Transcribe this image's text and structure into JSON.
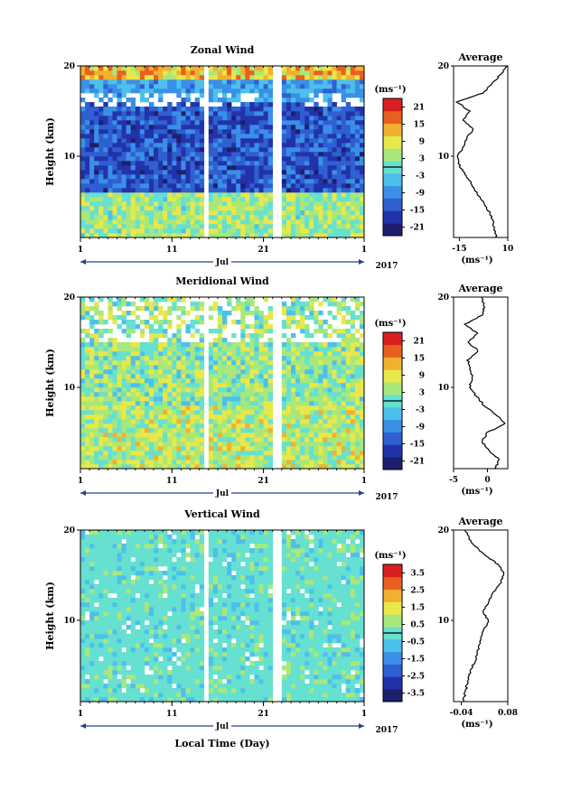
{
  "chart_data": [
    {
      "type": "heatmap",
      "title": "Zonal Wind",
      "ylabel": "Height (km)",
      "xlabel": "",
      "xlim": [
        1,
        32
      ],
      "ylim": [
        1,
        20
      ],
      "x_ticks": [
        "1",
        "11",
        "21",
        "1"
      ],
      "y_ticks": [
        "20",
        "10"
      ],
      "month_label": "Jul",
      "year_label": "2017",
      "colorbar": {
        "unit": "(ms⁻¹)",
        "ticks": [
          "21",
          "15",
          "9",
          "3",
          "-3",
          "-9",
          "-15",
          "-21"
        ],
        "range": [
          -24,
          24
        ]
      },
      "data_gaps_day": [
        [
          14.3,
          15.1
        ],
        [
          22.0,
          22.8
        ]
      ],
      "average_profile": {
        "title": "Average",
        "xlabel": "(ms⁻¹)",
        "x_ticks": [
          "-15",
          "10"
        ],
        "xlim": [
          -18,
          10
        ],
        "heights_km": [
          1,
          2,
          3,
          4,
          5,
          6,
          7,
          8,
          9,
          10,
          11,
          12,
          13,
          14,
          15,
          16,
          17,
          18,
          19,
          20
        ],
        "values": [
          4,
          3,
          2,
          0,
          -3,
          -6,
          -9,
          -12,
          -15,
          -16,
          -13,
          -11,
          -8,
          -13,
          -10,
          -16,
          -3,
          2,
          6,
          10
        ]
      }
    },
    {
      "type": "heatmap",
      "title": "Meridional Wind",
      "ylabel": "Height (km)",
      "xlabel": "",
      "xlim": [
        1,
        32
      ],
      "ylim": [
        1,
        20
      ],
      "x_ticks": [
        "1",
        "11",
        "21",
        "1"
      ],
      "y_ticks": [
        "20",
        "10"
      ],
      "month_label": "Jul",
      "year_label": "2017",
      "colorbar": {
        "unit": "(ms⁻¹)",
        "ticks": [
          "21",
          "15",
          "9",
          "3",
          "-3",
          "-9",
          "-15",
          "-21"
        ],
        "range": [
          -24,
          24
        ]
      },
      "data_gaps_day": [
        [
          14.3,
          15.1
        ],
        [
          22.0,
          22.8
        ]
      ],
      "average_profile": {
        "title": "Average",
        "xlabel": "(ms⁻¹)",
        "x_ticks": [
          "-5",
          "0"
        ],
        "xlim": [
          -5,
          3
        ],
        "heights_km": [
          1,
          2,
          3,
          4,
          5,
          6,
          7,
          8,
          9,
          10,
          11,
          12,
          13,
          14,
          15,
          16,
          17,
          18,
          19,
          20
        ],
        "values": [
          1,
          1.8,
          0.2,
          -0.8,
          0,
          2.6,
          1.2,
          -0.5,
          -1.6,
          -2.7,
          -2.2,
          -2.6,
          -2.9,
          -1.3,
          -2.8,
          -1.5,
          -3.3,
          -0.8,
          -0.4,
          -0.9
        ]
      }
    },
    {
      "type": "heatmap",
      "title": "Vertical Wind",
      "ylabel": "Height (km)",
      "xlabel": "Local Time (Day)",
      "xlim": [
        1,
        32
      ],
      "ylim": [
        1,
        20
      ],
      "x_ticks": [
        "1",
        "11",
        "21",
        "1"
      ],
      "y_ticks": [
        "20",
        "10"
      ],
      "month_label": "Jul",
      "year_label": "2017",
      "colorbar": {
        "unit": "(ms⁻¹)",
        "ticks": [
          "3.5",
          "2.5",
          "1.5",
          "0.5",
          "-0.5",
          "-1.5",
          "-2.5",
          "-3.5"
        ],
        "range": [
          -4,
          4
        ]
      },
      "data_gaps_day": [
        [
          14.3,
          15.1
        ],
        [
          22.0,
          22.8
        ]
      ],
      "average_profile": {
        "title": "Average",
        "xlabel": "(ms⁻¹)",
        "x_ticks": [
          "-0.04",
          "0.08"
        ],
        "xlim": [
          -0.06,
          0.08
        ],
        "heights_km": [
          1,
          2,
          3,
          4,
          5,
          6,
          7,
          8,
          9,
          10,
          11,
          12,
          13,
          14,
          15,
          16,
          17,
          18,
          19,
          20
        ],
        "values": [
          -0.035,
          -0.03,
          -0.025,
          -0.02,
          -0.01,
          0.0,
          0.005,
          0.01,
          0.02,
          0.03,
          0.015,
          0.03,
          0.04,
          0.06,
          0.07,
          0.06,
          0.03,
          0.0,
          -0.02,
          -0.03
        ]
      }
    }
  ],
  "colors": {
    "scale": [
      "#1d1f6e",
      "#2233aa",
      "#2f5fd0",
      "#3a8fe6",
      "#4cc0ec",
      "#66e0d0",
      "#a8e87a",
      "#e8e84a",
      "#f0b030",
      "#e86020",
      "#d82020"
    ]
  }
}
